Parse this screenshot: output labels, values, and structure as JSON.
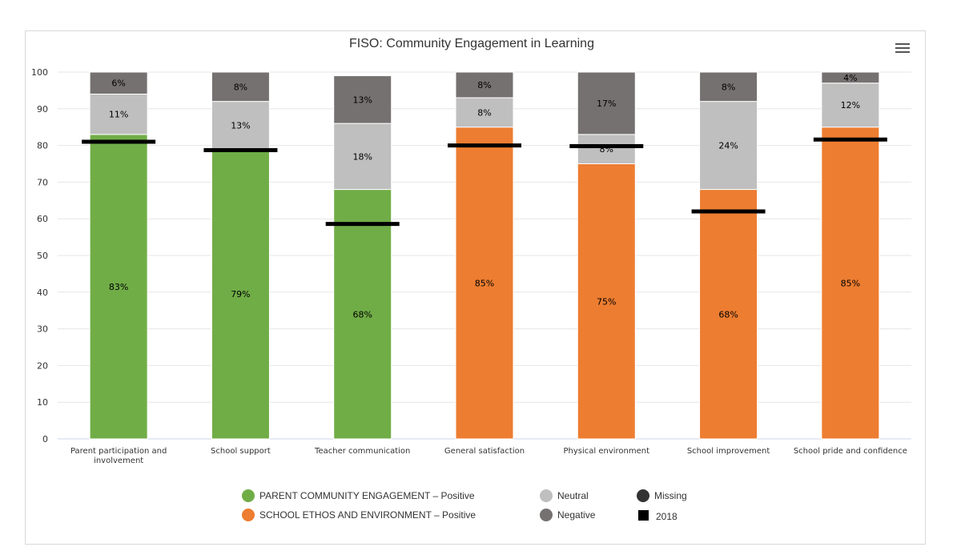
{
  "menu_icon": "hamburger-menu-icon",
  "chart_data": {
    "type": "bar",
    "stacked": true,
    "title": "FISO: Community Engagement in Learning",
    "ylim": [
      0,
      100
    ],
    "yticks": [
      "0",
      "10",
      "20",
      "30",
      "40",
      "50",
      "60",
      "70",
      "80",
      "90",
      "100"
    ],
    "grid": true,
    "categories": [
      "Parent participation and involvement",
      "School support",
      "Teacher communication",
      "General satisfaction",
      "Physical environment",
      "School improvement",
      "School pride and confidence"
    ],
    "category_lines": [
      [
        "Parent participation and",
        "involvement"
      ],
      [
        "School support"
      ],
      [
        "Teacher communication"
      ],
      [
        "General satisfaction"
      ],
      [
        "Physical environment"
      ],
      [
        "School improvement"
      ],
      [
        "School pride and confidence"
      ]
    ],
    "series": [
      {
        "name": "PARENT COMMUNITY ENGAGEMENT – Positive",
        "color": "#70ad47",
        "values": [
          83,
          79,
          68,
          null,
          null,
          null,
          null
        ],
        "labels": [
          "83%",
          "79%",
          "68%",
          "",
          "",
          "",
          ""
        ]
      },
      {
        "name": "SCHOOL ETHOS AND ENVIRONMENT – Positive",
        "color": "#ed7d31",
        "values": [
          null,
          null,
          null,
          85,
          75,
          68,
          85
        ],
        "labels": [
          "",
          "",
          "",
          "85%",
          "75%",
          "68%",
          "85%"
        ]
      },
      {
        "name": "Neutral",
        "color": "#bfbfbf",
        "values": [
          11,
          13,
          18,
          8,
          8,
          24,
          12
        ],
        "labels": [
          "11%",
          "13%",
          "18%",
          "8%",
          "8%",
          "24%",
          "12%"
        ]
      },
      {
        "name": "Negative",
        "color": "#767171",
        "values": [
          6,
          8,
          13,
          8,
          17,
          8,
          4
        ],
        "labels": [
          "6%",
          "8%",
          "13%",
          "8%",
          "17%",
          "8%",
          "4%"
        ]
      },
      {
        "name": "Missing",
        "color": "#333333",
        "values": [
          0,
          0,
          0,
          0,
          0,
          0,
          0
        ],
        "labels": [
          "",
          "",
          "",
          "",
          "",
          "",
          ""
        ]
      }
    ],
    "benchmark": {
      "name": "2018",
      "color": "#000000",
      "values": [
        81,
        78.7,
        58.6,
        80,
        79.8,
        62,
        81.6
      ]
    },
    "legend": {
      "placement": "bottom",
      "items": [
        {
          "name": "PARENT COMMUNITY ENGAGEMENT – Positive",
          "color": "#70ad47",
          "shape": "circle"
        },
        {
          "name": "SCHOOL ETHOS AND ENVIRONMENT – Positive",
          "color": "#ed7d31",
          "shape": "circle"
        },
        {
          "name": "Neutral",
          "color": "#bfbfbf",
          "shape": "circle"
        },
        {
          "name": "Negative",
          "color": "#767171",
          "shape": "circle"
        },
        {
          "name": "Missing",
          "color": "#333333",
          "shape": "circle"
        },
        {
          "name": "2018",
          "color": "#000000",
          "shape": "square"
        }
      ]
    }
  }
}
